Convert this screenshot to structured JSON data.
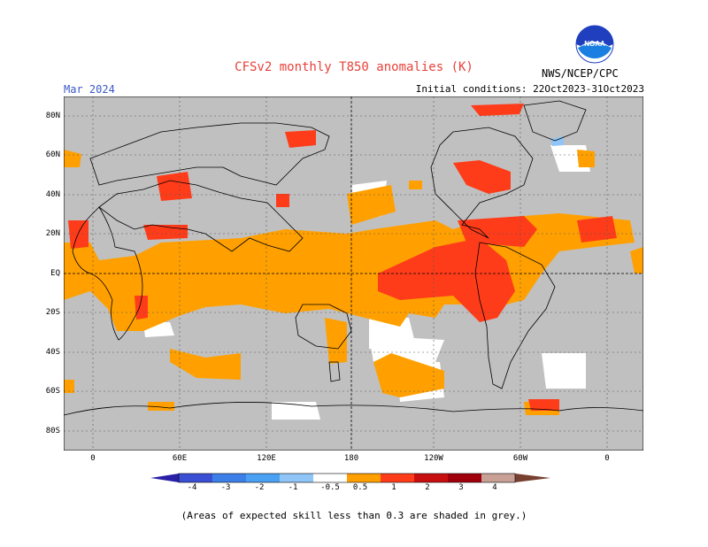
{
  "header": {
    "title": "CFSv2 monthly T850 anomalies (K)",
    "month": "Mar 2024",
    "initial_conditions": "Initial conditions: 22Oct2023-31Oct2023",
    "organization": "NWS/NCEP/CPC",
    "logo_text": "NOAA"
  },
  "map": {
    "lat_labels": [
      "80N",
      "60N",
      "40N",
      "20N",
      "EQ",
      "20S",
      "40S",
      "60S",
      "80S"
    ],
    "lon_labels": [
      "0",
      "60E",
      "120E",
      "180",
      "120W",
      "60W",
      "0"
    ],
    "colors": {
      "ocean_land_grey": "#c0c0c0",
      "coast": "#000000",
      "gridline": "#555555"
    }
  },
  "colorbar": {
    "labels": [
      "-4",
      "-3",
      "-2",
      "-1",
      "-0.5",
      "0.5",
      "1",
      "2",
      "3",
      "4"
    ],
    "colors": [
      "#2a1fa6",
      "#3b4fd4",
      "#3c7fe8",
      "#4aa0f2",
      "#8fc6f7",
      "#ffffff",
      "#ffa000",
      "#ff3c1a",
      "#c80f0f",
      "#a0000a",
      "#c8a096",
      "#784030"
    ]
  },
  "footnote": "(Areas of expected skill less than 0.3 are shaded in grey.)"
}
